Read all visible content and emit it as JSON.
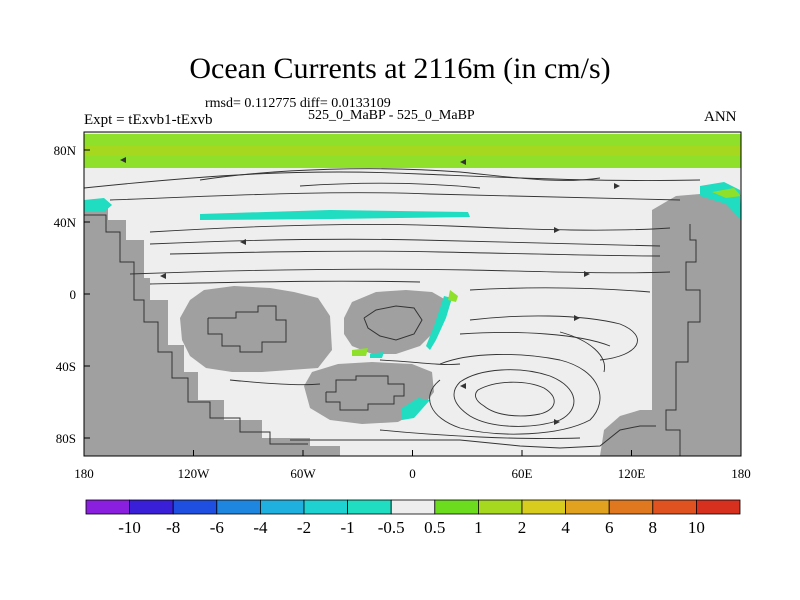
{
  "chart_data": {
    "type": "heatmap",
    "title": "Ocean Currents at 2116m (in cm/s)",
    "stats_line": "rmsd= 0.112775 diff= 0.0133109",
    "subtitle": "525_0_MaBP - 525_0_MaBP",
    "left_label": "Expt = tExvb1-tExvb",
    "right_label": "ANN",
    "x_ticks": [
      "180",
      "120W",
      "60W",
      "0",
      "60E",
      "120E",
      "180"
    ],
    "y_ticks": [
      "80N",
      "40N",
      "0",
      "40S",
      "80S"
    ],
    "x_range": [
      -180,
      180
    ],
    "y_range": [
      -90,
      90
    ],
    "colorbar": {
      "labels": [
        "-10",
        "-8",
        "-6",
        "-4",
        "-2",
        "-1",
        "-0.5",
        "0.5",
        "1",
        "2",
        "4",
        "6",
        "8",
        "10"
      ],
      "colors": [
        "#8a1fe0",
        "#3a1fd8",
        "#1f4fe0",
        "#1f86e0",
        "#1fb0e0",
        "#1fd2d2",
        "#20dcc0",
        "#eeeeee",
        "#6cdc1f",
        "#a6d81f",
        "#d8cc1f",
        "#e0a21f",
        "#e0781f",
        "#e0521f",
        "#d8301f"
      ]
    },
    "land_color": "#a0a0a0",
    "ocean_color": "#eeeeee"
  }
}
